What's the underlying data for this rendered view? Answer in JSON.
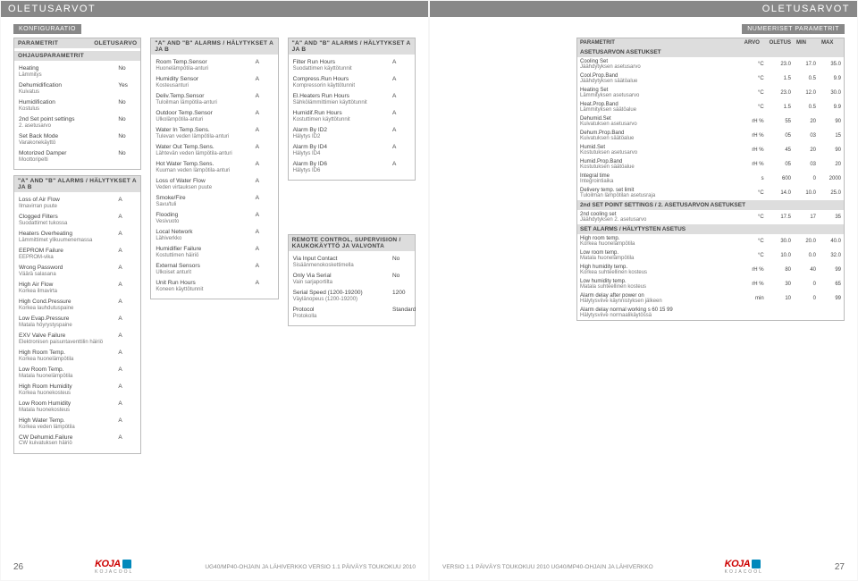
{
  "header_left": "OLETUSARVOT",
  "header_right": "OLETUSARVOT",
  "left_page": {
    "tab": "KONFIGURAATIO",
    "col1": {
      "box1": {
        "header_l": "PARAMETRIT",
        "header_r": "OLETUSARVO",
        "sub_header": "OHJAUSPARAMETRIT",
        "rows": [
          {
            "l": "Heating",
            "s": "Lämmitys",
            "v": "No"
          },
          {
            "l": "Dehumidification",
            "s": "Kuivatus",
            "v": "Yes"
          },
          {
            "l": "Humidification",
            "s": "Kostulus",
            "v": "No"
          },
          {
            "l": "2nd Set point settings",
            "s": "2. asetusarvo",
            "v": "No"
          },
          {
            "l": "Set Back Mode",
            "s": "Varakonekäyttö",
            "v": "No"
          },
          {
            "l": "Motorized Damper",
            "s": "Moottoripelti",
            "v": "No"
          }
        ]
      },
      "box2": {
        "header": "\"A\" AND \"B\" ALARMS / HÄLYTYKSET A JA B",
        "rows": [
          {
            "l": "Loss of Air Flow",
            "s": "Ilmavirran puute",
            "v": "A"
          },
          {
            "l": "Clogged Filters",
            "s": "Suodattimet tukossa",
            "v": "A"
          },
          {
            "l": "Heaters Overheating",
            "s": "Lämmittimet ylikuumenemassa",
            "v": "A"
          },
          {
            "l": "EEPROM Failure",
            "s": "EEPROM-vika",
            "v": "A"
          },
          {
            "l": "Wrong Password",
            "s": "Väärä salasana",
            "v": "A"
          },
          {
            "l": "High Air Flow",
            "s": "Korkea ilmavirta",
            "v": "A"
          },
          {
            "l": "High Cond.Pressure",
            "s": "Korkea lauhdutuspaine",
            "v": "A"
          },
          {
            "l": "Low Evap.Pressure",
            "s": "Matala höyrystyspaine",
            "v": "A"
          },
          {
            "l": "EXV Valve Failure",
            "s": "Elektronisen paisuntaventtilin häiriö",
            "v": "A"
          },
          {
            "l": "High Room Temp.",
            "s": "Korkea huonelämpötila",
            "v": "A"
          },
          {
            "l": "Low Room Temp.",
            "s": "Matala huonelämpötila",
            "v": "A"
          },
          {
            "l": "High Room Humidity",
            "s": "Korkea huonekosteus",
            "v": "A"
          },
          {
            "l": "Low Room Humidity",
            "s": "Matala huonekosteus",
            "v": "A"
          },
          {
            "l": "High Water Temp.",
            "s": "Korkea veden lämpötila",
            "v": "A"
          },
          {
            "l": "CW Dehumid.Failure",
            "s": "CW kuivatuksen häiriö",
            "v": "A"
          }
        ]
      }
    },
    "col2": {
      "box": {
        "header": "\"A\" AND \"B\" ALARMS / HÄLYTYKSET A JA B",
        "rows": [
          {
            "l": "Room Temp.Sensor",
            "s": "Huonelämpötila-anturi",
            "v": "A"
          },
          {
            "l": "Humidity Sensor",
            "s": "Kosteusanturi",
            "v": "A"
          },
          {
            "l": "Deliv.Temp.Sensor",
            "s": "Tuloilman lämpötila-anturi",
            "v": "A"
          },
          {
            "l": "Outdoor Temp.Sensor",
            "s": "Ulkolämpötila-anturi",
            "v": "A"
          },
          {
            "l": "Water In Temp.Sens.",
            "s": "Tulevan veden lämpötila-anturi",
            "v": "A"
          },
          {
            "l": "Water Out Temp.Sens.",
            "s": "Lähtevän veden lämpötila-anturi",
            "v": "A"
          },
          {
            "l": "Hot Water Temp.Sens.",
            "s": "Kuuman veden lämpötila-anturi",
            "v": "A"
          },
          {
            "l": "Loss of Water Flow",
            "s": "Veden virtauksen puute",
            "v": "A"
          },
          {
            "l": "Smoke/Fire",
            "s": "Savu/tuli",
            "v": "A"
          },
          {
            "l": "Flooding",
            "s": "Vesivuoto",
            "v": "A"
          },
          {
            "l": "Local Network",
            "s": "Lähiverkko",
            "v": "A"
          },
          {
            "l": "Humidifier Failure",
            "s": "Kostuttimen häiriö",
            "v": "A"
          },
          {
            "l": "External Sensors",
            "s": "Ulkoiset anturit",
            "v": "A"
          },
          {
            "l": "Unit Run Hours",
            "s": "Koneen käyttötunnit",
            "v": "A"
          }
        ]
      }
    },
    "col3": {
      "box1": {
        "header": "\"A\" AND \"B\" ALARMS / HÄLYTYKSET A JA B",
        "rows": [
          {
            "l": "Filter Run Hours",
            "s": "Suodattimen käyttötunnit",
            "v": "A"
          },
          {
            "l": "Compress.Run Hours",
            "s": "Kompressorin käyttötunnit",
            "v": "A"
          },
          {
            "l": "El.Heaters Run Hours",
            "s": "Sähkölämmittimien käyttötunnit",
            "v": "A"
          },
          {
            "l": "Humidif.Run Hours",
            "s": "Kostuttimen käyttötunnit",
            "v": "A"
          },
          {
            "l": "Alarm By ID2",
            "s": "Hälytys ID2",
            "v": "A"
          },
          {
            "l": "Alarm By ID4",
            "s": "Hälytys ID4",
            "v": "A"
          },
          {
            "l": "Alarm By ID6",
            "s": "Hälytys ID6",
            "v": "A"
          }
        ]
      },
      "box2": {
        "header": "REMOTE CONTROL, SUPERVISION / KAUKOKÄYTTÖ JA VALVONTA",
        "rows": [
          {
            "l": "Via Input Contact",
            "s": "Sisäänmenokoskettimella",
            "v": "No"
          },
          {
            "l": "Only Via Serial",
            "s": "Vain sarjaportilta",
            "v": "No"
          },
          {
            "l": "Serial Speed (1200-19200)",
            "s": "Väylänopeus (1200-19200)",
            "v": "1200"
          },
          {
            "l": "Protocol",
            "s": "Protokolla",
            "v": "Standard"
          }
        ]
      }
    },
    "footer": {
      "page": "26",
      "text": "UG40/MP40-OHJAIN JA LÄHIVERKKO  VERSIO 1.1  PÄIVÄYS TOUKOKUU 2010"
    }
  },
  "right_page": {
    "tab": "NUMEERISET PARAMETRIT",
    "table_headers": [
      "PARAMETRIT",
      "ARVO",
      "OLETUS",
      "MIN",
      "MAX"
    ],
    "sections": [
      {
        "title": "ASETUSARVON ASETUKSET",
        "rows": [
          {
            "l": "Cooling Set",
            "s": "Jäähdytyksen asetusarvo",
            "u": "°C",
            "o": "23.0",
            "mn": "17.0",
            "mx": "35.0"
          },
          {
            "l": "Cool.Prop.Band",
            "s": "Jäähdytyksen säätöalue",
            "u": "°C",
            "o": "1.5",
            "mn": "0.5",
            "mx": "9.9"
          },
          {
            "l": "Heating Set",
            "s": "Lämmityksen asetusarvo",
            "u": "°C",
            "o": "23.0",
            "mn": "12.0",
            "mx": "30.0"
          },
          {
            "l": "Heat.Prop.Band",
            "s": "Lämmityksen säätöalue",
            "u": "°C",
            "o": "1.5",
            "mn": "0.5",
            "mx": "9.9"
          },
          {
            "l": "Dehumid.Set",
            "s": "Kuivatuksen asetusarvo",
            "u": "rH %",
            "o": "55",
            "mn": "20",
            "mx": "90"
          },
          {
            "l": "Dehum.Prop.Band",
            "s": "Kuivatuksen säätöalue",
            "u": "rH %",
            "o": "05",
            "mn": "03",
            "mx": "15"
          },
          {
            "l": "Humid.Set",
            "s": "Kostutuksen asetusarvo",
            "u": "rH %",
            "o": "45",
            "mn": "20",
            "mx": "90"
          },
          {
            "l": "Humid.Prop.Band",
            "s": "Kostutuksen säätöalue",
            "u": "rH %",
            "o": "05",
            "mn": "03",
            "mx": "20"
          },
          {
            "l": "Integral time",
            "s": "Integrointiaika",
            "u": "s",
            "o": "600",
            "mn": "0",
            "mx": "2000"
          },
          {
            "l": "Delivery temp. set limit",
            "s": "Tuloilman lämpötilan asetusraja",
            "u": "°C",
            "o": "14.0",
            "mn": "10.0",
            "mx": "25.0"
          }
        ]
      },
      {
        "title": "2nd SET POINT SETTINGS / 2. ASETUSARVON ASETUKSET",
        "rows": [
          {
            "l": "2nd cooling set",
            "s": "Jäähdytyksen 2. asetusarvo",
            "u": "°C",
            "o": "17.5",
            "mn": "17",
            "mx": "35"
          }
        ]
      },
      {
        "title": "SET ALARMS / HÄLYTYSTEN ASETUS",
        "rows": [
          {
            "l": "High room temp.",
            "s": "Korkea huonelämpötila",
            "u": "°C",
            "o": "30.0",
            "mn": "20.0",
            "mx": "40.0"
          },
          {
            "l": "Low room temp.",
            "s": "Matala huonelämpötila",
            "u": "°C",
            "o": "10.0",
            "mn": "0.0",
            "mx": "32.0"
          },
          {
            "l": "High humidity temp.",
            "s": "Korkea suhteellinen kosteus",
            "u": "rH %",
            "o": "80",
            "mn": "40",
            "mx": "99"
          },
          {
            "l": "Low humidity temp.",
            "s": "Matala suhteellinen kosteus",
            "u": "rH %",
            "o": "30",
            "mn": "0",
            "mx": "65"
          },
          {
            "l": "Alarm delay after power on",
            "s": "Hälytysviive käynnistyksen jälkeen",
            "u": "min",
            "o": "10",
            "mn": "0",
            "mx": "99"
          },
          {
            "l": "Alarm delay normal working s 60 15 99",
            "s": "Hälytysviive normaalikäytössä",
            "u": "",
            "o": "",
            "mn": "",
            "mx": ""
          }
        ]
      }
    ],
    "footer": {
      "text": "VERSIO 1.1  PÄIVÄYS TOUKOKUU 2010   UG40/MP40-OHJAIN JA LÄHIVERKKO",
      "page": "27"
    }
  }
}
